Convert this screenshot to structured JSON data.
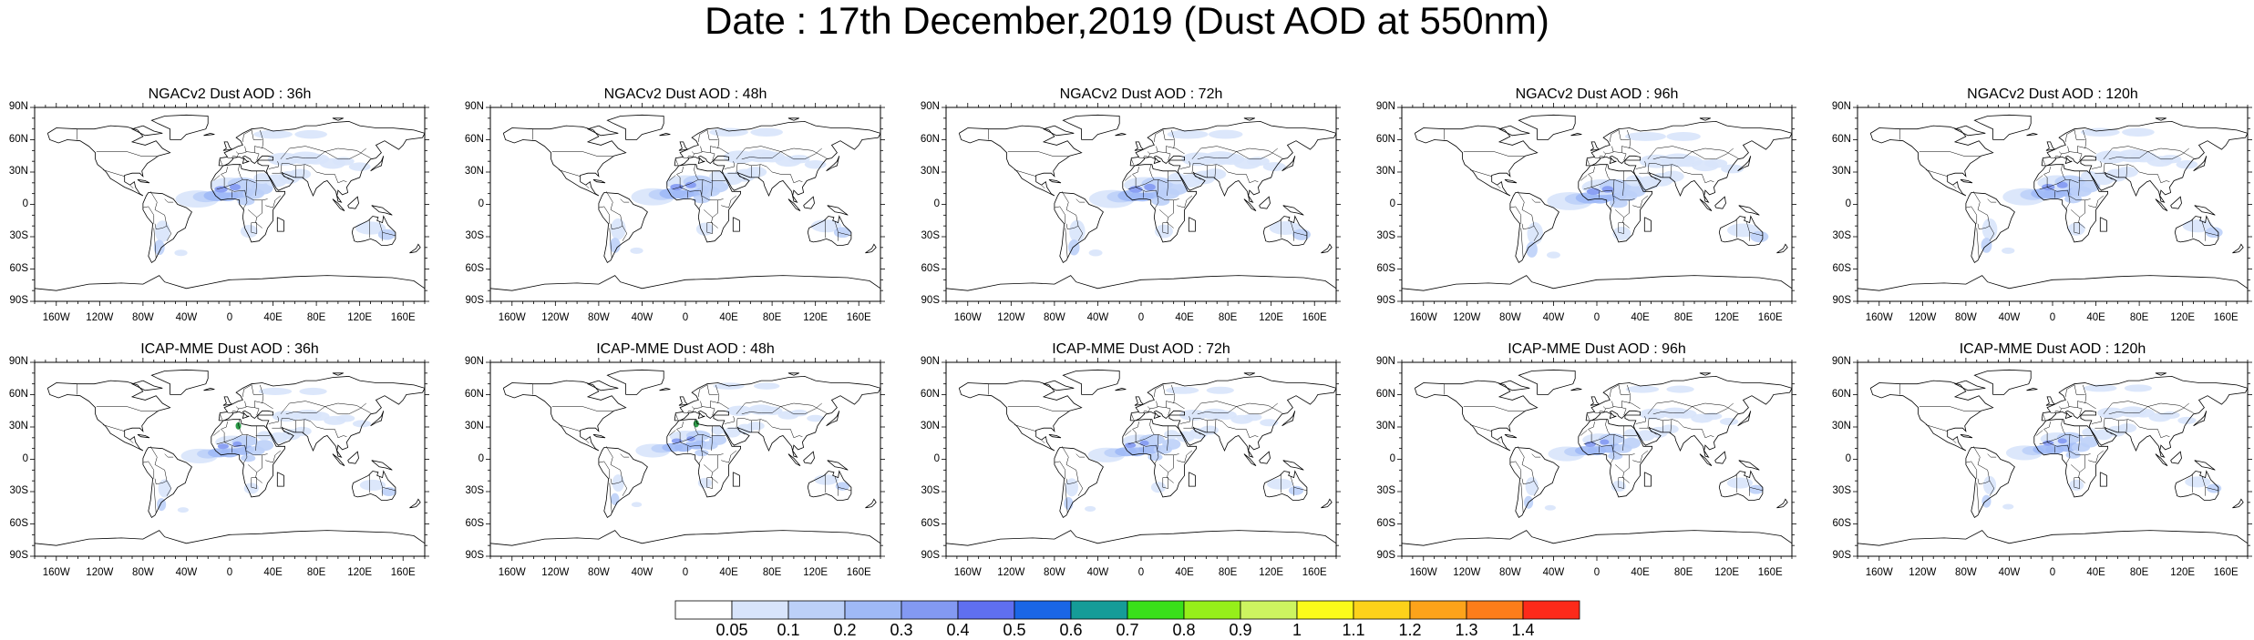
{
  "title": "Date : 17th December,2019 (Dust AOD at 550nm)",
  "panels_top": [
    {
      "title": "NGACv2 Dust AOD : 36h"
    },
    {
      "title": "NGACv2 Dust AOD : 48h"
    },
    {
      "title": "NGACv2 Dust AOD : 72h"
    },
    {
      "title": "NGACv2 Dust AOD : 96h"
    },
    {
      "title": "NGACv2 Dust AOD : 120h"
    }
  ],
  "panels_bottom": [
    {
      "title": "ICAP-MME Dust AOD : 36h"
    },
    {
      "title": "ICAP-MME Dust AOD : 48h"
    },
    {
      "title": "ICAP-MME Dust AOD : 72h"
    },
    {
      "title": "ICAP-MME Dust AOD : 96h"
    },
    {
      "title": "ICAP-MME Dust AOD : 120h"
    }
  ],
  "lat_labels": [
    "90N",
    "60N",
    "30N",
    "0",
    "30S",
    "60S",
    "90S"
  ],
  "lon_labels": [
    "160W",
    "120W",
    "80W",
    "40W",
    "0",
    "40E",
    "80E",
    "120E",
    "160E"
  ],
  "colorbar": {
    "labels": [
      "0.05",
      "0.1",
      "0.2",
      "0.3",
      "0.4",
      "0.5",
      "0.6",
      "0.7",
      "0.8",
      "0.9",
      "1",
      "1.1",
      "1.2",
      "1.3",
      "1.4"
    ],
    "colors": [
      "#ffffff",
      "#d8e4fb",
      "#bcd0f8",
      "#9fb9f6",
      "#8399f2",
      "#5f6ff0",
      "#1a66e6",
      "#159c98",
      "#39e01a",
      "#96ef1a",
      "#cdf460",
      "#fbfb1a",
      "#fdd21a",
      "#fda31a",
      "#fd7d1a",
      "#fd2a1a"
    ]
  }
}
